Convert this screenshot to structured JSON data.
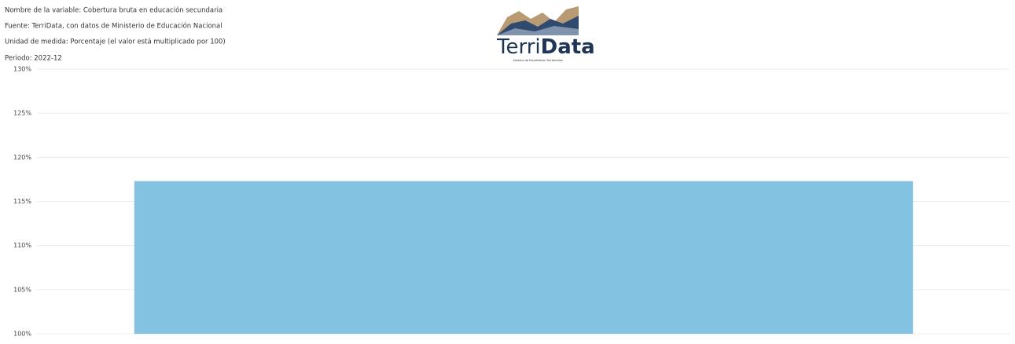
{
  "header": {
    "lines": [
      "Nombre de la variable: Cobertura bruta en educación secundaria",
      "Fuente: TerriData, con datos de Ministerio de Educación Nacional",
      "Unidad de medida: Porcentaje (el valor está multiplicado por 100)",
      "Periodo: 2022-12"
    ]
  },
  "logo": {
    "parts": [
      "Terri",
      "Data"
    ],
    "tagline": "Sistema de Estadísticas Territoriales"
  },
  "chart_data": {
    "type": "bar",
    "categories": [
      null
    ],
    "values": [
      117.3
    ],
    "color": "#84c2e2",
    "ylim": [
      100,
      130
    ],
    "yticks": [
      {
        "value": 100,
        "label": "100%"
      },
      {
        "value": 105,
        "label": "105%"
      },
      {
        "value": 110,
        "label": "110%"
      },
      {
        "value": 115,
        "label": "115%"
      },
      {
        "value": 120,
        "label": "120%"
      },
      {
        "value": 125,
        "label": "125%"
      },
      {
        "value": 130,
        "label": "130%"
      }
    ],
    "grid": true
  }
}
